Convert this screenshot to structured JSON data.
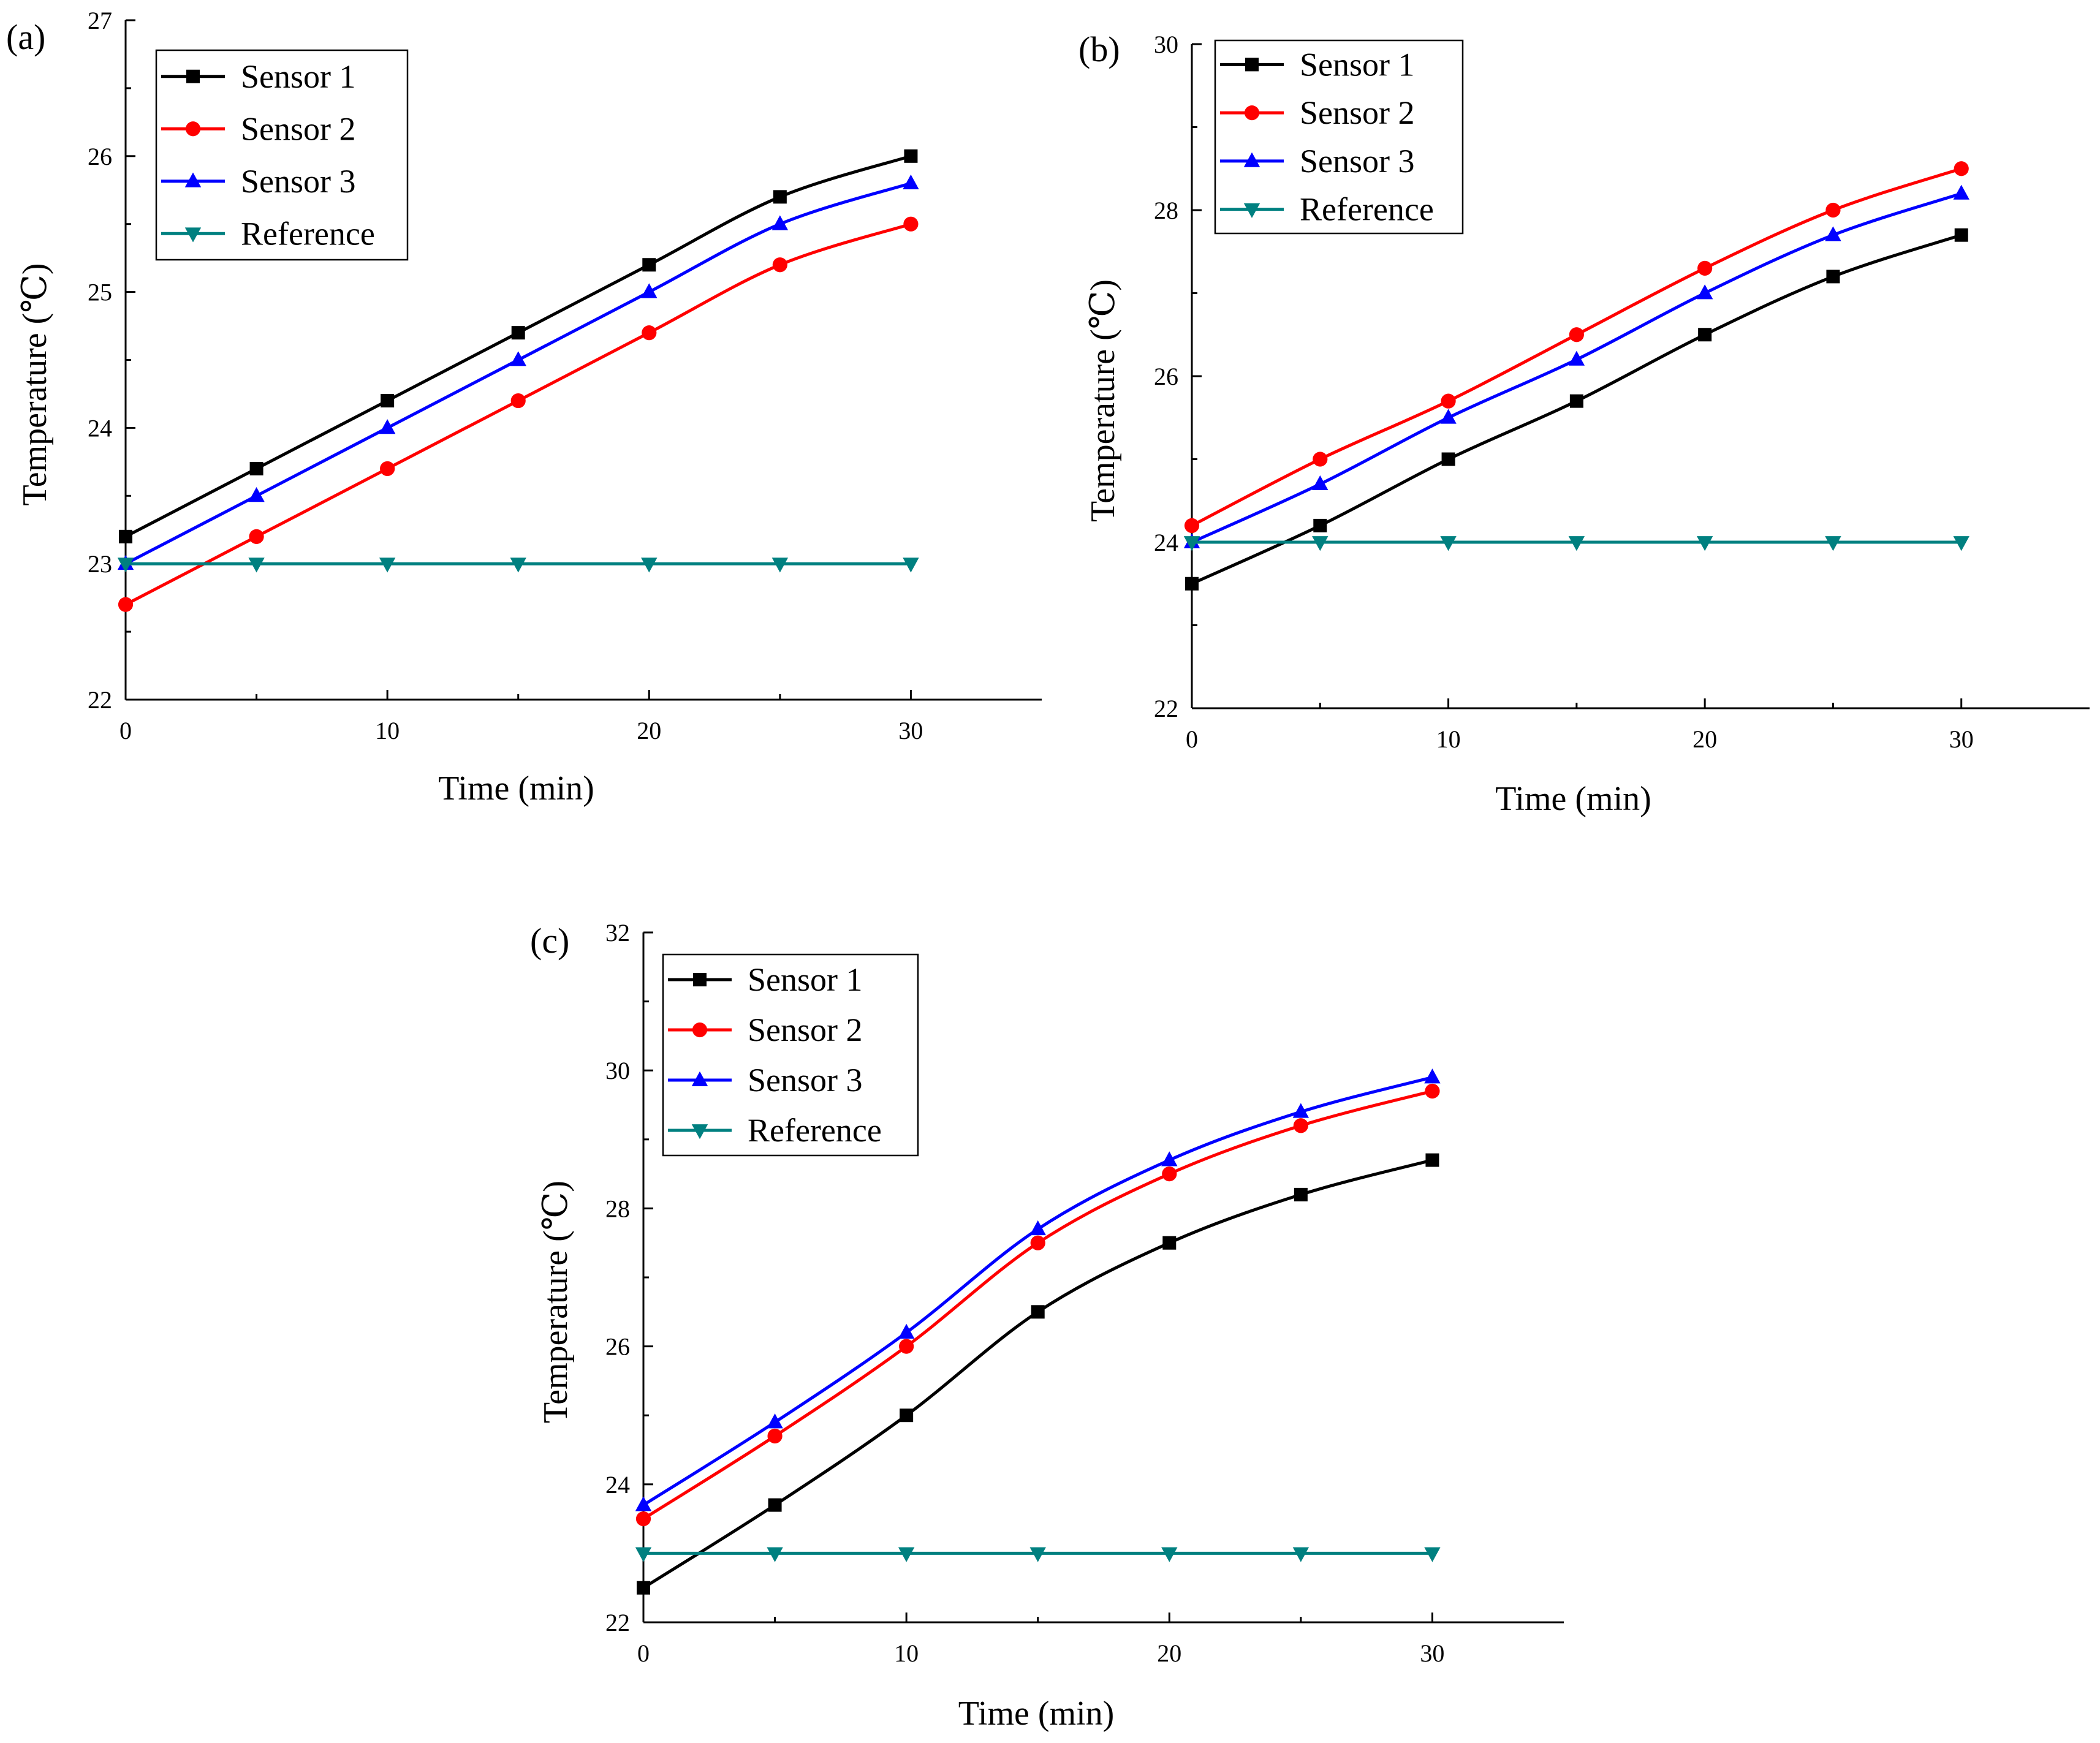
{
  "chart_data": [
    {
      "type": "line",
      "panel_label": "(a)",
      "xlabel": "Time (min)",
      "ylabel": "Temperature (℃)",
      "xlim": [
        0,
        35
      ],
      "ylim": [
        22,
        27
      ],
      "xticks": [
        0,
        10,
        20,
        30
      ],
      "yticks": [
        22,
        23,
        24,
        25,
        26,
        27
      ],
      "x": [
        0,
        5,
        10,
        15,
        20,
        25,
        30
      ],
      "legend_position": "top-left",
      "series": [
        {
          "name": "Sensor 1",
          "color": "#000000",
          "marker": "square",
          "values": [
            23.2,
            23.7,
            24.2,
            24.7,
            25.2,
            25.7,
            26.0
          ]
        },
        {
          "name": "Sensor 2",
          "color": "#ff0000",
          "marker": "circle",
          "values": [
            22.7,
            23.2,
            23.7,
            24.2,
            24.7,
            25.2,
            25.5
          ]
        },
        {
          "name": "Sensor 3",
          "color": "#0000ff",
          "marker": "triangle-up",
          "values": [
            23.0,
            23.5,
            24.0,
            24.5,
            25.0,
            25.5,
            25.8
          ]
        },
        {
          "name": "Reference",
          "color": "#008080",
          "marker": "triangle-down",
          "values": [
            23.0,
            23.0,
            23.0,
            23.0,
            23.0,
            23.0,
            23.0
          ]
        }
      ]
    },
    {
      "type": "line",
      "panel_label": "(b)",
      "xlabel": "Time (min)",
      "ylabel": "Temperature (℃)",
      "xlim": [
        0,
        35
      ],
      "ylim": [
        22,
        30
      ],
      "xticks": [
        0,
        10,
        20,
        30
      ],
      "yticks": [
        22,
        24,
        26,
        28,
        30
      ],
      "x": [
        0,
        5,
        10,
        15,
        20,
        25,
        30
      ],
      "legend_position": "top-left",
      "series": [
        {
          "name": "Sensor 1",
          "color": "#000000",
          "marker": "square",
          "values": [
            23.5,
            24.2,
            25.0,
            25.7,
            26.5,
            27.2,
            27.7
          ]
        },
        {
          "name": "Sensor 2",
          "color": "#ff0000",
          "marker": "circle",
          "values": [
            24.2,
            25.0,
            25.7,
            26.5,
            27.3,
            28.0,
            28.5
          ]
        },
        {
          "name": "Sensor 3",
          "color": "#0000ff",
          "marker": "triangle-up",
          "values": [
            24.0,
            24.7,
            25.5,
            26.2,
            27.0,
            27.7,
            28.2
          ]
        },
        {
          "name": "Reference",
          "color": "#008080",
          "marker": "triangle-down",
          "values": [
            24.0,
            24.0,
            24.0,
            24.0,
            24.0,
            24.0,
            24.0
          ]
        }
      ]
    },
    {
      "type": "line",
      "panel_label": "(c)",
      "xlabel": "Time (min)",
      "ylabel": "Temperature (℃)",
      "xlim": [
        0,
        35
      ],
      "ylim": [
        22,
        32
      ],
      "xticks": [
        0,
        10,
        20,
        30
      ],
      "yticks": [
        22,
        24,
        26,
        28,
        30,
        32
      ],
      "x": [
        0,
        5,
        10,
        15,
        20,
        25,
        30
      ],
      "legend_position": "top-left",
      "series": [
        {
          "name": "Sensor 1",
          "color": "#000000",
          "marker": "square",
          "values": [
            22.5,
            23.7,
            25.0,
            26.5,
            27.5,
            28.2,
            28.7
          ]
        },
        {
          "name": "Sensor 2",
          "color": "#ff0000",
          "marker": "circle",
          "values": [
            23.5,
            24.7,
            26.0,
            27.5,
            28.5,
            29.2,
            29.7
          ]
        },
        {
          "name": "Sensor 3",
          "color": "#0000ff",
          "marker": "triangle-up",
          "values": [
            23.7,
            24.9,
            26.2,
            27.7,
            28.7,
            29.4,
            29.9
          ]
        },
        {
          "name": "Reference",
          "color": "#008080",
          "marker": "triangle-down",
          "values": [
            23.0,
            23.0,
            23.0,
            23.0,
            23.0,
            23.0,
            23.0
          ]
        }
      ]
    }
  ]
}
